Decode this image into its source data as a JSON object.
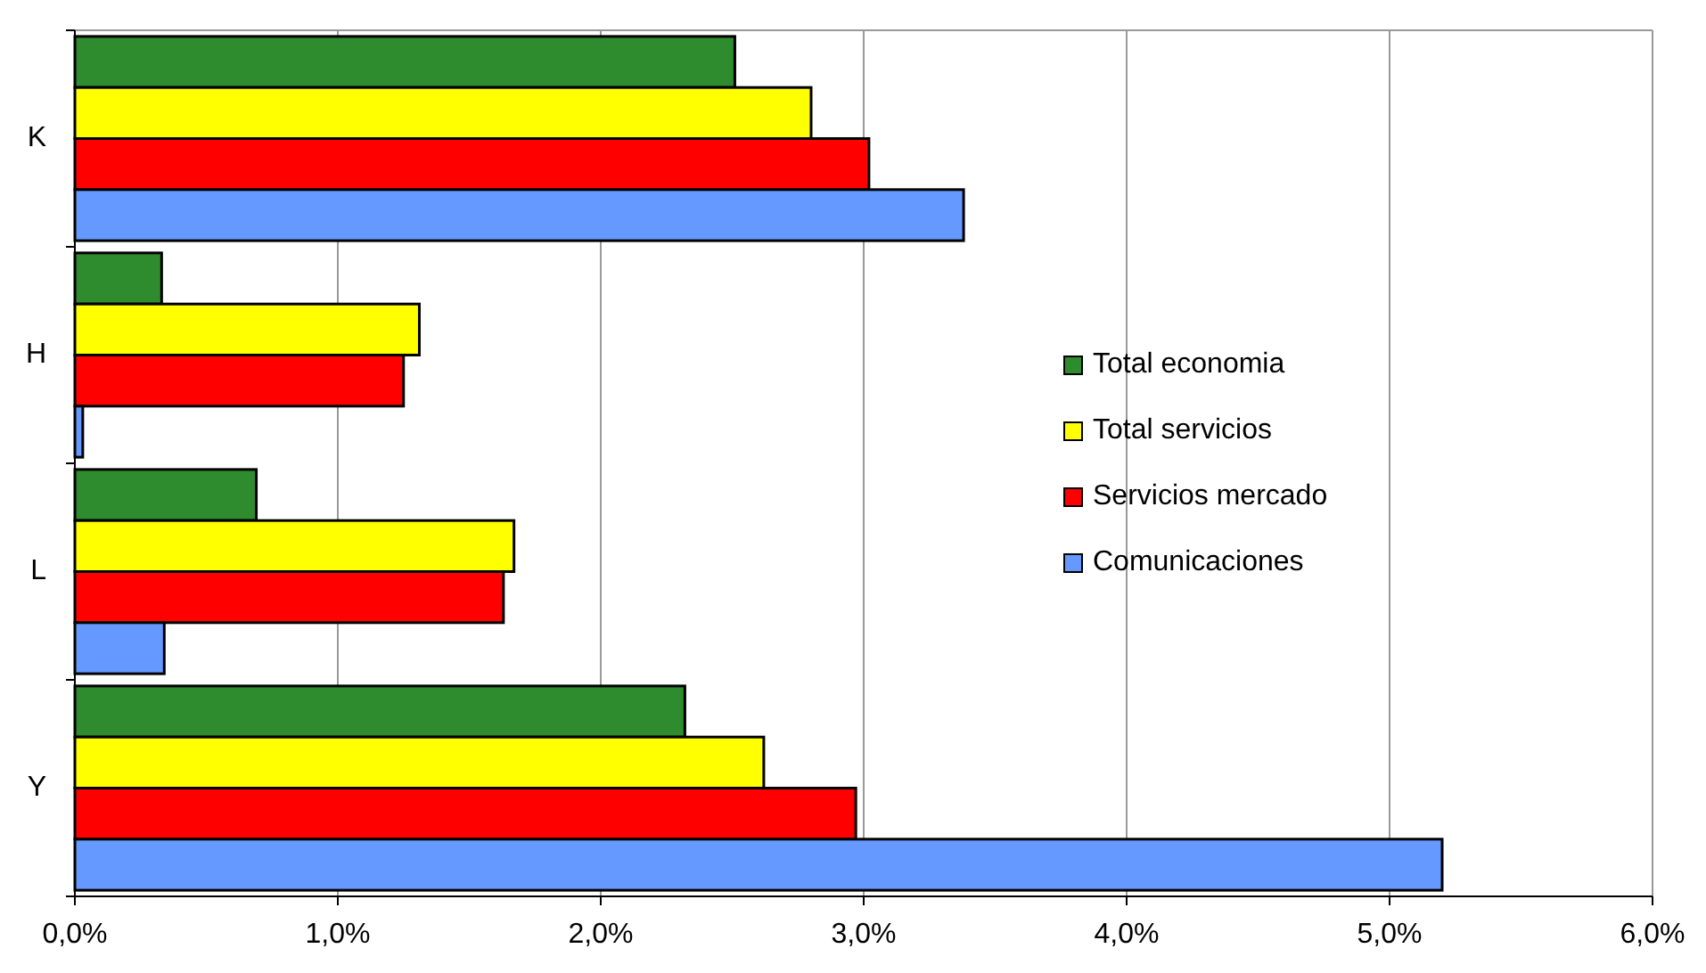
{
  "chart_data": {
    "type": "bar",
    "orientation": "horizontal",
    "categories": [
      "K",
      "H",
      "L",
      "Y"
    ],
    "series": [
      {
        "name": "Total economia",
        "color": "#2e8b2e",
        "values": [
          2.51,
          0.33,
          0.69,
          2.32
        ]
      },
      {
        "name": "Total servicios",
        "color": "#ffff00",
        "values": [
          2.8,
          1.31,
          1.67,
          2.62
        ]
      },
      {
        "name": "Servicios mercado",
        "color": "#ff0000",
        "values": [
          3.02,
          1.25,
          1.63,
          2.97
        ]
      },
      {
        "name": "Comunicaciones",
        "color": "#6699ff",
        "values": [
          3.38,
          0.03,
          0.34,
          5.2
        ]
      }
    ],
    "xlim": [
      0,
      6
    ],
    "xticks": [
      {
        "value": 0,
        "label": "0,0%"
      },
      {
        "value": 1,
        "label": "1,0%"
      },
      {
        "value": 2,
        "label": "2,0%"
      },
      {
        "value": 3,
        "label": "3,0%"
      },
      {
        "value": 4,
        "label": "4,0%"
      },
      {
        "value": 5,
        "label": "5,0%"
      },
      {
        "value": 6,
        "label": "6,0%"
      }
    ],
    "grid": "x",
    "legend": "right"
  }
}
